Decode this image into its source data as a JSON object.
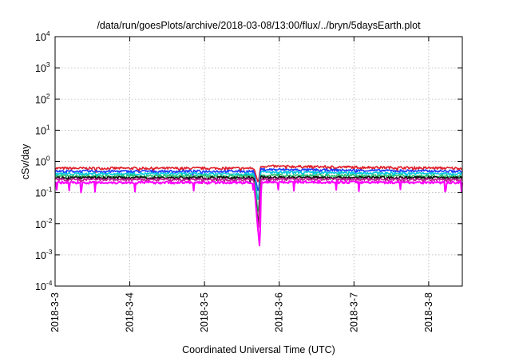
{
  "chart_data": {
    "type": "line",
    "title": "/data/run/goesPlots/archive/2018-03-08/13:00/flux/../bryn/5daysEarth.plot",
    "xlabel": "Coordinated Universal Time (UTC)",
    "ylabel": "cSv/day",
    "x_ticks": [
      "2018-3-3",
      "2018-3-4",
      "2018-3-5",
      "2018-3-6",
      "2018-3-7",
      "2018-3-8"
    ],
    "x_range_days": [
      0,
      5.45
    ],
    "y_scale": "log",
    "ylim": [
      0.0001,
      10000
    ],
    "y_ticks": [
      {
        "base": "10",
        "exp": "4"
      },
      {
        "base": "10",
        "exp": "3"
      },
      {
        "base": "10",
        "exp": "2"
      },
      {
        "base": "10",
        "exp": "1"
      },
      {
        "base": "10",
        "exp": "0"
      },
      {
        "base": "10",
        "exp": "-1"
      },
      {
        "base": "10",
        "exp": "-2"
      },
      {
        "base": "10",
        "exp": "-3"
      },
      {
        "base": "10",
        "exp": "-4"
      }
    ],
    "grid": true,
    "series": [
      {
        "color": "#e0202a",
        "base": 0.6,
        "values": [
          [
            0,
            0.6
          ],
          [
            2.66,
            0.6
          ],
          [
            2.72,
            0.2
          ],
          [
            2.75,
            0.7
          ],
          [
            5.45,
            0.6
          ]
        ]
      },
      {
        "color": "#1e3cff",
        "base": 0.48,
        "values": [
          [
            0,
            0.48
          ],
          [
            2.66,
            0.48
          ],
          [
            2.72,
            0.1
          ],
          [
            2.75,
            0.55
          ],
          [
            5.45,
            0.48
          ]
        ]
      },
      {
        "color": "#00c8e0",
        "base": 0.4,
        "values": [
          [
            0,
            0.4
          ],
          [
            2.66,
            0.4
          ],
          [
            2.72,
            0.05
          ],
          [
            2.75,
            0.45
          ],
          [
            5.45,
            0.4
          ]
        ]
      },
      {
        "color": "#30c070",
        "base": 0.34,
        "values": [
          [
            0,
            0.34
          ],
          [
            2.66,
            0.34
          ],
          [
            2.72,
            0.02
          ],
          [
            2.75,
            0.36
          ],
          [
            5.45,
            0.34
          ]
        ]
      },
      {
        "color": "#101010",
        "base": 0.3,
        "values": [
          [
            0,
            0.3
          ],
          [
            2.66,
            0.3
          ],
          [
            2.72,
            0.008
          ],
          [
            2.75,
            0.31
          ],
          [
            5.45,
            0.3
          ]
        ]
      },
      {
        "color": "#c02090",
        "base": 0.26,
        "values": [
          [
            0,
            0.26
          ],
          [
            2.66,
            0.26
          ],
          [
            2.72,
            0.004
          ],
          [
            2.75,
            0.27
          ],
          [
            5.45,
            0.26
          ]
        ]
      },
      {
        "color": "#ff00ff",
        "base": 0.21,
        "values": [
          [
            0,
            0.21
          ],
          [
            0.34,
            0.21
          ],
          [
            0.35,
            0.06
          ],
          [
            0.36,
            0.21
          ],
          [
            2.66,
            0.21
          ],
          [
            2.74,
            0.0015
          ],
          [
            2.76,
            0.22
          ],
          [
            5.45,
            0.21
          ]
        ]
      }
    ]
  }
}
